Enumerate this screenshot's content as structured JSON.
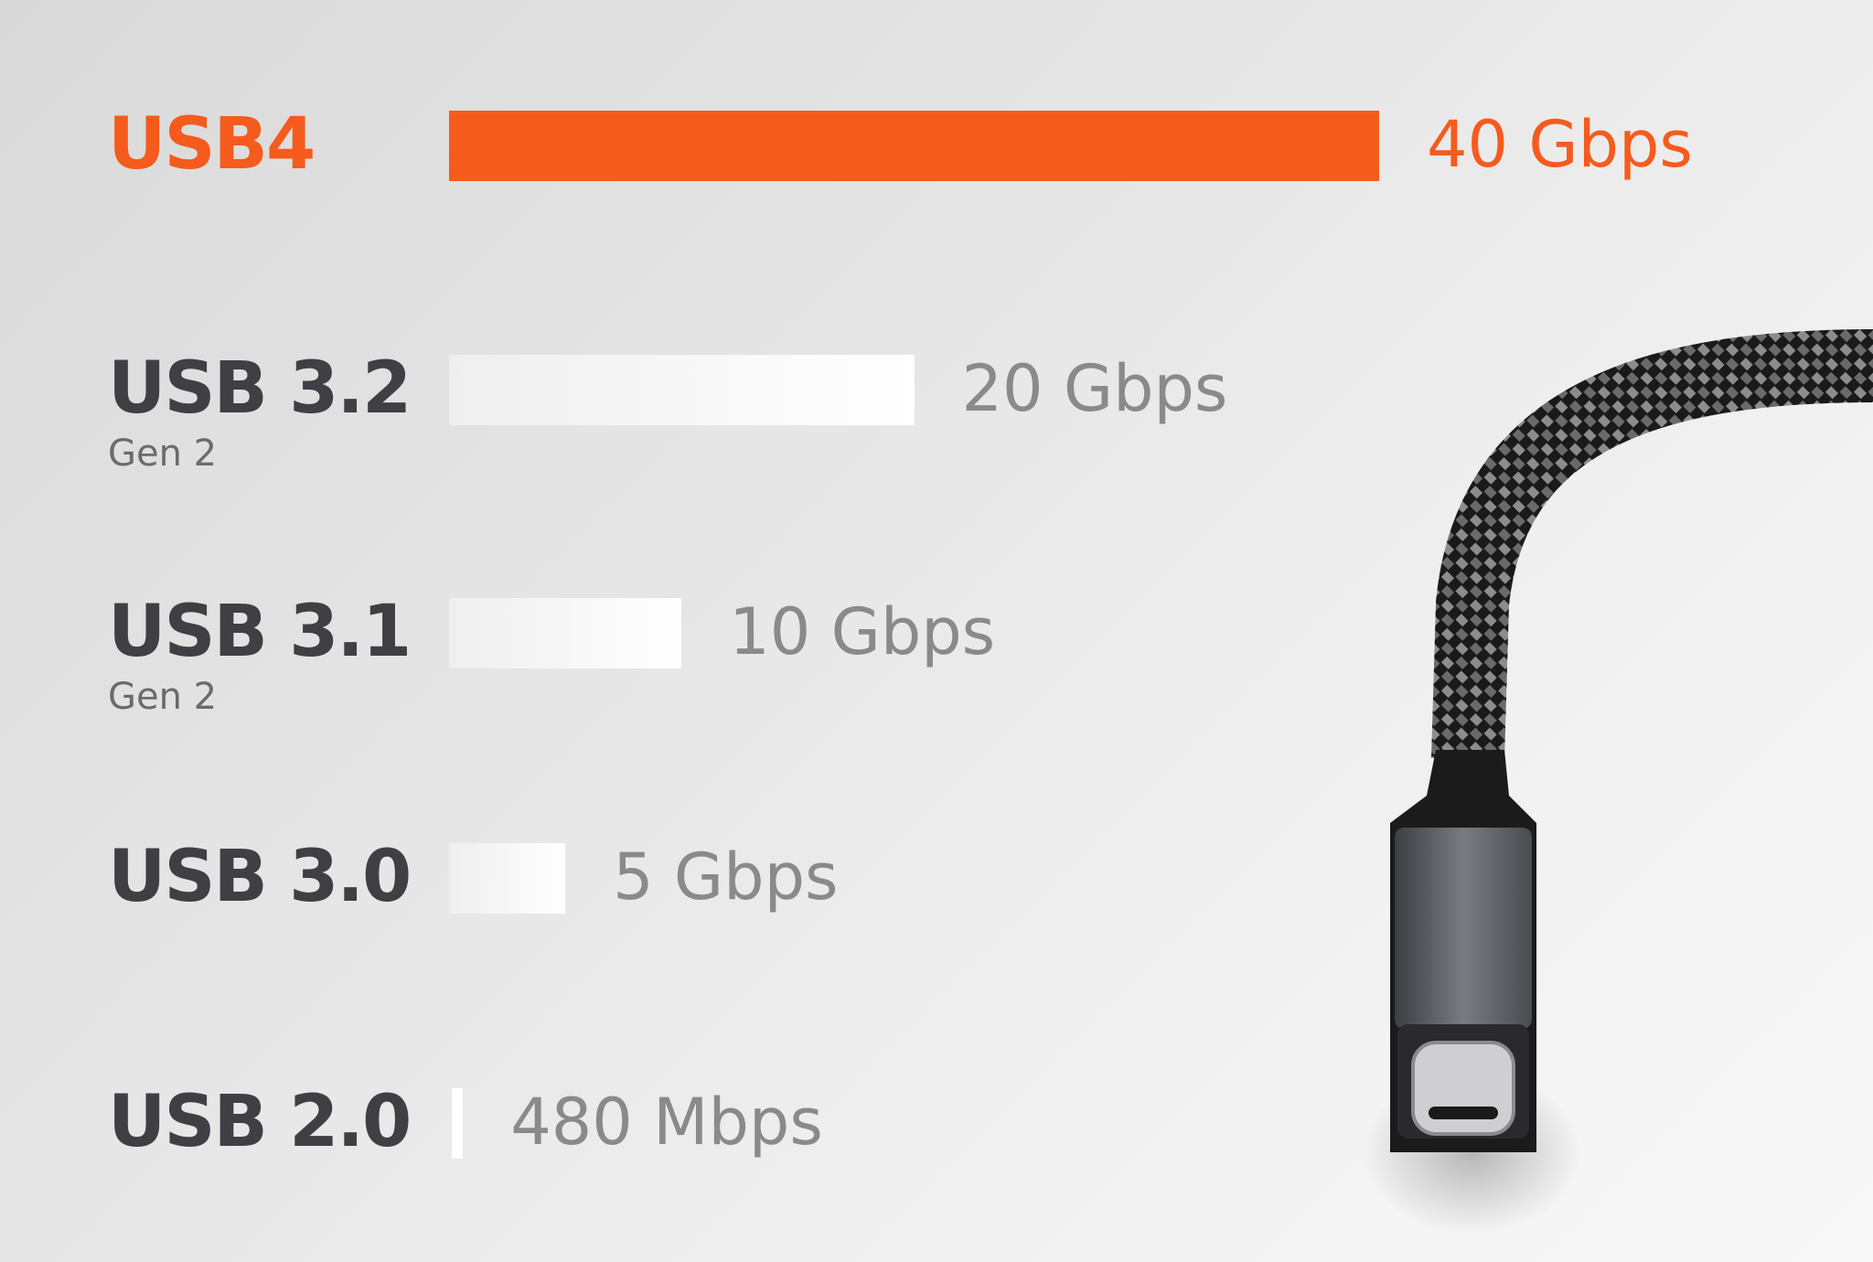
{
  "chart_data": {
    "type": "bar",
    "orientation": "horizontal",
    "categories": [
      "USB4",
      "USB 3.2",
      "USB 3.1",
      "USB 3.0",
      "USB 2.0"
    ],
    "subtitles": [
      "",
      "Gen 2",
      "Gen 2",
      "",
      ""
    ],
    "values": [
      40,
      20,
      10,
      5,
      0.48
    ],
    "unit": "Gbps",
    "value_labels": [
      "40 Gbps",
      "20 Gbps",
      "10 Gbps",
      "5 Gbps",
      "480 Mbps"
    ],
    "highlight_color": "#f55b1d",
    "bar_color": "#ffffff",
    "label_color": "#3f3f44",
    "grid": false,
    "legend": "none"
  },
  "image": {
    "subject": "usb-c-braided-cable-icon"
  }
}
